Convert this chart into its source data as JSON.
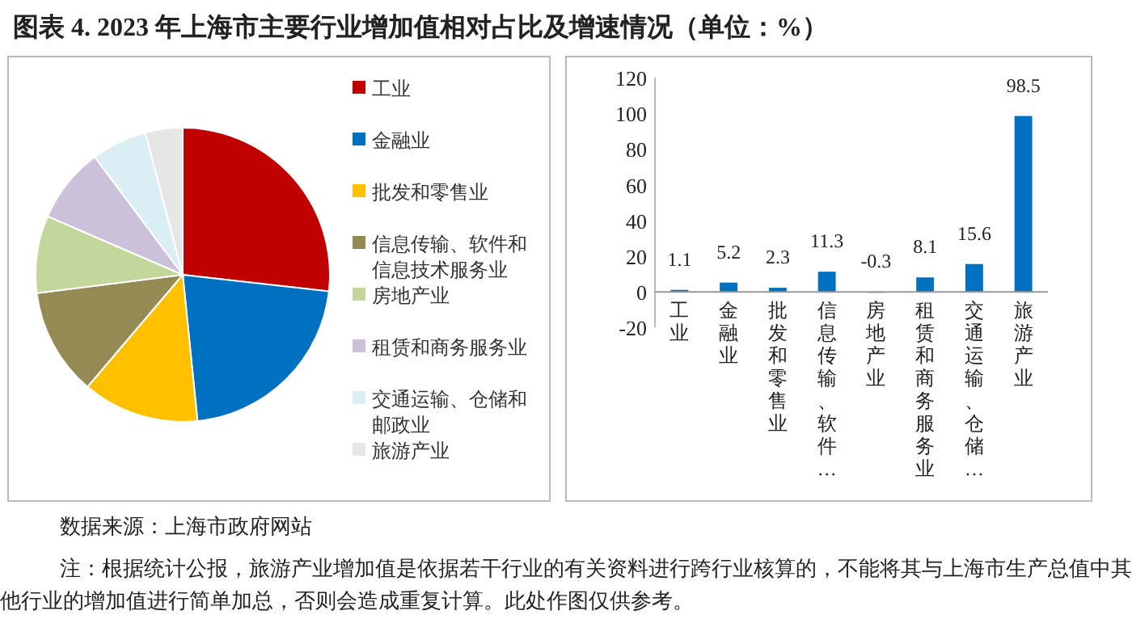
{
  "chart_data": [
    {
      "type": "pie",
      "title": "图表 4.  2023 年上海市主要行业增加值相对占比及增速情况（单位：%）",
      "legend": "right",
      "categories": [
        "工业",
        "金融业",
        "批发和零售业",
        "信息传输、软件和信息技术服务业",
        "房地产业",
        "租赁和商务服务业",
        "交通运输、仓储和邮政业",
        "旅游产业"
      ],
      "values": [
        26.8,
        21.6,
        12.8,
        11.8,
        8.5,
        8.3,
        6.1,
        4.1
      ],
      "colors": [
        "#c00000",
        "#0070c0",
        "#ffc000",
        "#948a54",
        "#c3d69b",
        "#ccc1da",
        "#dbeef4",
        "#e6e6e6"
      ],
      "annotations": [
        "数据来源：上海市政府网站",
        "注：根据统计公报，旅游产业增加值是依据若干行业的有关资料进行跨行业核算的，不能将其与上海市生产总值中其他行业的增加值进行简单加总，否则会造成重复计算。此处作图仅供参考。"
      ]
    },
    {
      "type": "bar",
      "categories": [
        "工业",
        "金融业",
        "批发和零售业",
        "信息传输、软件…",
        "房地产业",
        "租赁和商务服务业",
        "交通运输、仓储…",
        "旅游产业"
      ],
      "values": [
        1.1,
        5.2,
        2.3,
        11.3,
        -0.3,
        8.1,
        15.6,
        98.5
      ],
      "color": "#0070c0",
      "ylim": [
        -20,
        120
      ],
      "yticks": [
        -20,
        0,
        20,
        40,
        60,
        80,
        100,
        120
      ],
      "data_labels": true,
      "grid": false
    }
  ]
}
